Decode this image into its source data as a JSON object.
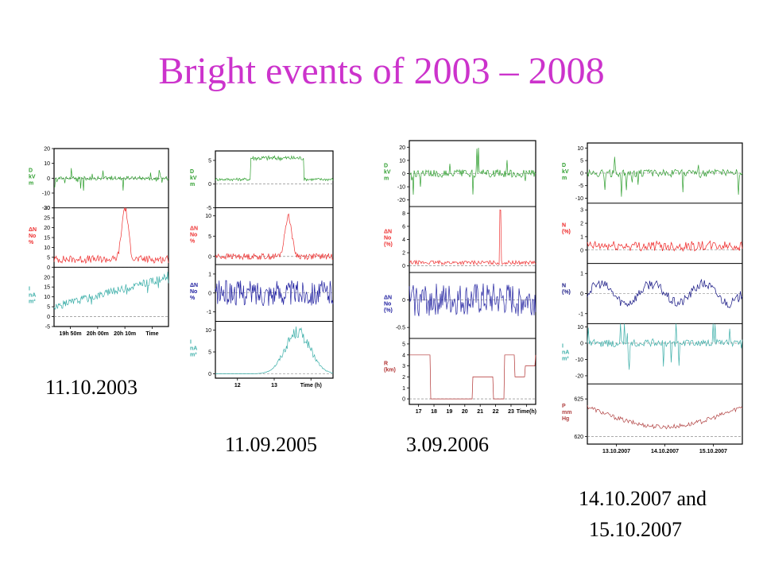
{
  "slide": {
    "title": "Bright events of 2003 – 2008"
  },
  "chart_data": [
    {
      "type": "line",
      "event_label": "11.10.2003",
      "x_ticks": [
        "19h 50m",
        "20h 00m",
        "20h 10m",
        "Time"
      ],
      "panels": [
        {
          "ylabel": [
            "D",
            "kV",
            "m"
          ],
          "color": "#2e9e2e",
          "ylim": [
            -20,
            20
          ],
          "ticks": [
            "20",
            "10",
            "0",
            "-10",
            "-20"
          ],
          "ref": 0,
          "style": "spiky",
          "base": 0,
          "amp": 8
        },
        {
          "ylabel": [
            "ΔN",
            "No",
            "%"
          ],
          "color": "#ee3030",
          "ylim": [
            0,
            30
          ],
          "ticks": [
            "30",
            "25",
            "20",
            "15",
            "10",
            "5",
            "0"
          ],
          "ref": 0,
          "style": "peak",
          "base": 4,
          "amp": 26,
          "peak_at": 0.62
        },
        {
          "ylabel": [
            "I",
            "nA",
            "m²"
          ],
          "color": "#3aaea8",
          "ylim": [
            -5,
            25
          ],
          "ticks": [
            "20",
            "15",
            "10",
            "5",
            "0",
            "-5"
          ],
          "ref": 0,
          "style": "ramp",
          "base": 5,
          "amp": 15
        }
      ]
    },
    {
      "type": "line",
      "event_label": "11.09.2005",
      "x_ticks": [
        "12",
        "13",
        "Time (h)"
      ],
      "panels": [
        {
          "ylabel": [
            "D",
            "kV",
            "m"
          ],
          "color": "#2e9e2e",
          "ylim": [
            -5,
            7
          ],
          "ticks": [
            "5",
            "0",
            "-5"
          ],
          "ref": 0,
          "style": "block",
          "base": 1,
          "amp": 5
        },
        {
          "ylabel": [
            "ΔN",
            "No",
            "%"
          ],
          "color": "#ee3030",
          "ylim": [
            -2,
            12
          ],
          "ticks": [
            "10",
            "5",
            "0"
          ],
          "ref": 0,
          "style": "peak",
          "base": 0,
          "amp": 10,
          "peak_at": 0.62
        },
        {
          "ylabel": [
            "ΔN",
            "No",
            "%"
          ],
          "color": "#2020a0",
          "ylim": [
            -1.5,
            1.5
          ],
          "ticks": [
            "1",
            "0",
            "-1"
          ],
          "ref": 0,
          "style": "noise",
          "base": 0,
          "amp": 0.9
        },
        {
          "ylabel": [
            "I",
            "nA",
            "m²"
          ],
          "color": "#3aaea8",
          "ylim": [
            -1,
            12
          ],
          "ticks": [
            "10",
            "5",
            "0"
          ],
          "ref": 0,
          "style": "hump",
          "base": 0,
          "amp": 10
        }
      ]
    },
    {
      "type": "line",
      "event_label": "3.09.2006",
      "x_ticks": [
        "17",
        "18",
        "19",
        "20",
        "21",
        "22",
        "23",
        "Time(h)"
      ],
      "panels": [
        {
          "ylabel": [
            "D",
            "kV",
            "m"
          ],
          "color": "#2e9e2e",
          "ylim": [
            -25,
            25
          ],
          "ticks": [
            "20",
            "10",
            "0",
            "-10",
            "-20"
          ],
          "ref": 0,
          "style": "spiky",
          "base": 0,
          "amp": 20
        },
        {
          "ylabel": [
            "ΔN",
            "No",
            "(%)"
          ],
          "color": "#ee3030",
          "ylim": [
            -1,
            9
          ],
          "ticks": [
            "8",
            "6",
            "4",
            "2",
            "0"
          ],
          "ref": 0,
          "style": "spike",
          "base": 0.5,
          "amp": 8,
          "peak_at": 0.72
        },
        {
          "ylabel": [
            "ΔN",
            "No",
            "(%)"
          ],
          "color": "#2020a0",
          "ylim": [
            -0.7,
            0.5
          ],
          "ticks": [
            "0",
            "-0.5"
          ],
          "ref": 0,
          "style": "noise",
          "base": 0,
          "amp": 0.4
        },
        {
          "ylabel": [
            "R",
            "(km)"
          ],
          "color": "#b03030",
          "ylim": [
            -0.5,
            5.5
          ],
          "ticks": [
            "5",
            "4",
            "3",
            "2",
            "1",
            "0"
          ],
          "ref": 0,
          "style": "steps",
          "base": 0,
          "amp": 4
        }
      ]
    },
    {
      "type": "line",
      "event_label": "14.10.2007 and 15.10.2007",
      "event_label_lines": [
        "14.10.2007 and",
        "15.10.2007"
      ],
      "x_ticks": [
        "13.10.2007",
        "14.10.2007",
        "15.10.2007"
      ],
      "panels": [
        {
          "ylabel": [
            "D",
            "kV",
            "m"
          ],
          "color": "#2e9e2e",
          "ylim": [
            -12,
            12
          ],
          "ticks": [
            "10",
            "5",
            "0",
            "-5",
            "-10"
          ],
          "ref": 0,
          "style": "spiky",
          "base": 0,
          "amp": 10
        },
        {
          "ylabel": [
            "N",
            "(%)"
          ],
          "color": "#ee2020",
          "ylim": [
            -1,
            3.5
          ],
          "ticks": [
            "3",
            "2",
            "1",
            "0"
          ],
          "ref": 0,
          "style": "noise",
          "base": 0.3,
          "amp": 0.5
        },
        {
          "ylabel": [
            "N",
            "(%)"
          ],
          "color": "#101080",
          "ylim": [
            -1.5,
            1.5
          ],
          "ticks": [
            "1",
            "0",
            "-1"
          ],
          "ref": 0,
          "style": "wave",
          "base": 0,
          "amp": 0.8
        },
        {
          "ylabel": [
            "I",
            "nA",
            "m²"
          ],
          "color": "#3aaea8",
          "ylim": [
            -25,
            12
          ],
          "ticks": [
            "10",
            "0",
            "-10",
            "-20"
          ],
          "ref": 0,
          "style": "spiky",
          "base": 0,
          "amp": 15
        },
        {
          "ylabel": [
            "P",
            "mm",
            "Hg"
          ],
          "color": "#b04040",
          "ylim": [
            619,
            627
          ],
          "ticks": [
            "625",
            "620"
          ],
          "ref": 620,
          "style": "valley",
          "base": 624,
          "amp": 3
        }
      ]
    }
  ]
}
